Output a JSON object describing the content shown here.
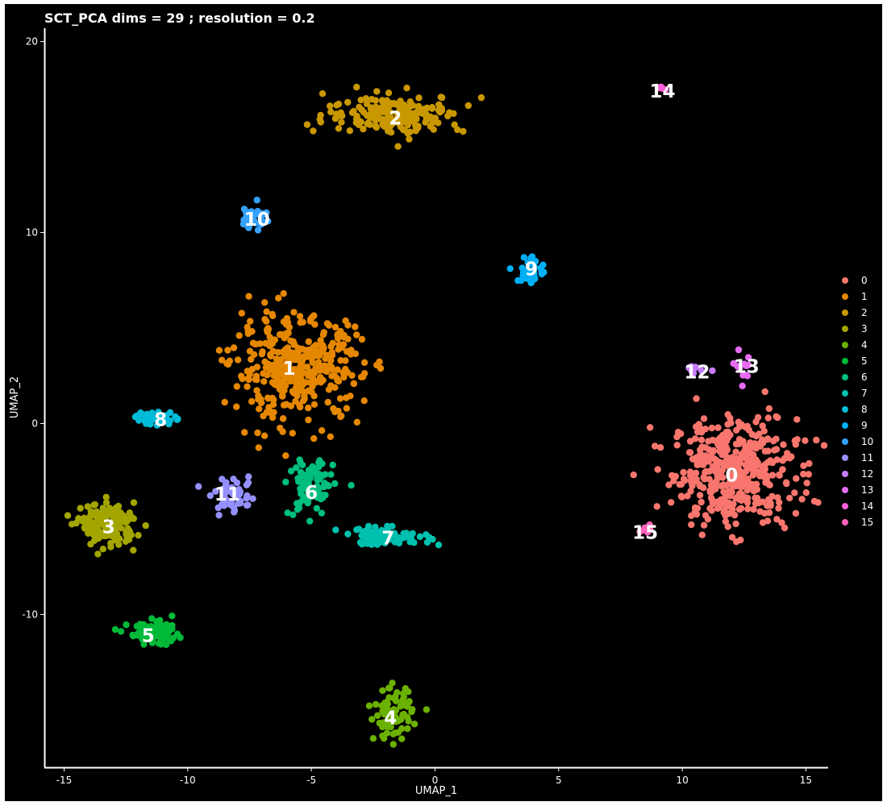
{
  "chart_data": {
    "type": "scatter",
    "title": "SCT_PCA dims =  29 ; resolution = 0.2",
    "xlabel": "UMAP_1",
    "ylabel": "UMAP_2",
    "xlim": [
      -15.8,
      15.9
    ],
    "ylim": [
      -18,
      20.7
    ],
    "xticks": [
      -15,
      -10,
      -5,
      0,
      5,
      10,
      15
    ],
    "yticks": [
      -10,
      0,
      10,
      20
    ],
    "grid": false,
    "legend_position": "right",
    "background": "#000000",
    "clusters": [
      {
        "name": "0",
        "color": "#F8766D",
        "label_x": 12.0,
        "label_y": -2.7,
        "cx": 12.1,
        "cy": -2.5,
        "sx": 1.25,
        "sy": 1.4
      },
      {
        "name": "1",
        "color": "#E58700",
        "label_x": -5.9,
        "label_y": 2.9,
        "cx": -5.6,
        "cy": 2.8,
        "sx": 1.3,
        "sy": 1.35
      },
      {
        "name": "2",
        "color": "#C99800",
        "label_x": -1.6,
        "label_y": 16.0,
        "cx": -1.6,
        "cy": 16.2,
        "sx": 1.4,
        "sy": 0.5
      },
      {
        "name": "3",
        "color": "#A3A500",
        "label_x": -13.2,
        "label_y": -5.4,
        "cx": -13.2,
        "cy": -5.3,
        "sx": 0.55,
        "sy": 0.55
      },
      {
        "name": "4",
        "color": "#6BB100",
        "label_x": -1.8,
        "label_y": -15.4,
        "cx": -1.7,
        "cy": -15.2,
        "sx": 0.38,
        "sy": 0.65
      },
      {
        "name": "5",
        "color": "#00BA38",
        "label_x": -11.6,
        "label_y": -11.1,
        "cx": -11.3,
        "cy": -11.0,
        "sx": 0.55,
        "sy": 0.28
      },
      {
        "name": "6",
        "color": "#00BF7D",
        "label_x": -5.0,
        "label_y": -3.6,
        "cx": -5.0,
        "cy": -3.3,
        "sx": 0.45,
        "sy": 0.8
      },
      {
        "name": "7",
        "color": "#00C0AF",
        "label_x": -1.9,
        "label_y": -6.0,
        "cx": -2.0,
        "cy": -5.9,
        "sx": 0.9,
        "sy": 0.22
      },
      {
        "name": "8",
        "color": "#00BCD8",
        "label_x": -11.1,
        "label_y": 0.2,
        "cx": -11.3,
        "cy": 0.3,
        "sx": 0.4,
        "sy": 0.18
      },
      {
        "name": "9",
        "color": "#00B0F6",
        "label_x": 3.9,
        "label_y": 8.1,
        "cx": 3.9,
        "cy": 8.0,
        "sx": 0.28,
        "sy": 0.42
      },
      {
        "name": "10",
        "color": "#35A2FF",
        "label_x": -7.2,
        "label_y": 10.7,
        "cx": -7.3,
        "cy": 10.8,
        "sx": 0.25,
        "sy": 0.35
      },
      {
        "name": "11",
        "color": "#9590FF",
        "label_x": -8.4,
        "label_y": -3.7,
        "cx": -8.2,
        "cy": -3.8,
        "sx": 0.45,
        "sy": 0.42
      },
      {
        "name": "12",
        "color": "#C77CFF",
        "label_x": 10.6,
        "label_y": 2.7,
        "cx": 10.6,
        "cy": 2.8,
        "sx": 0.25,
        "sy": 0.12
      },
      {
        "name": "13",
        "color": "#E76BF3",
        "label_x": 12.6,
        "label_y": 3.0,
        "cx": 12.5,
        "cy": 3.0,
        "sx": 0.2,
        "sy": 0.35
      },
      {
        "name": "14",
        "color": "#FA62DB",
        "label_x": 9.2,
        "label_y": 17.4,
        "cx": 9.2,
        "cy": 17.5,
        "sx": 0.1,
        "sy": 0.08
      },
      {
        "name": "15",
        "color": "#FF62BC",
        "label_x": 8.5,
        "label_y": -5.7,
        "cx": 8.5,
        "cy": -5.6,
        "sx": 0.2,
        "sy": 0.12
      }
    ]
  }
}
